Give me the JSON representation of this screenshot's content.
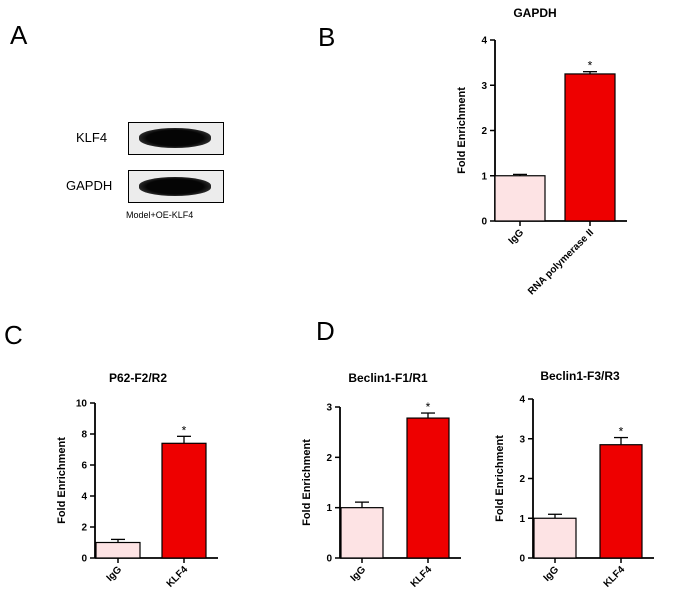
{
  "panels": {
    "a": "A",
    "b": "B",
    "c": "C",
    "d": "D"
  },
  "blot": {
    "rows": [
      "KLF4",
      "GAPDH"
    ],
    "caption": "Model+OE-KLF4"
  },
  "colors": {
    "igg_fill": "#fde3e4",
    "treatment_fill": "#ee0000",
    "axis": "#000000"
  },
  "chart_data": [
    {
      "id": "gapdh",
      "type": "bar",
      "title": "GAPDH",
      "ylabel": "Fold Enrichment",
      "xlabel": "",
      "ylim": [
        0,
        4
      ],
      "yticks": [
        "0",
        "1",
        "2",
        "3",
        "4"
      ],
      "categories": [
        "IgG",
        "RNA polymerase II"
      ],
      "values": [
        1.0,
        3.25
      ],
      "errors": [
        0.03,
        0.05
      ],
      "significance": [
        "",
        "*"
      ],
      "grid": false
    },
    {
      "id": "p62",
      "type": "bar",
      "title": "P62-F2/R2",
      "ylabel": "Fold Enrichment",
      "xlabel": "",
      "ylim": [
        0,
        10
      ],
      "yticks": [
        "0",
        "2",
        "4",
        "6",
        "8",
        "10"
      ],
      "categories": [
        "IgG",
        "KLF4"
      ],
      "values": [
        1.0,
        7.4
      ],
      "errors": [
        0.2,
        0.45
      ],
      "significance": [
        "",
        "*"
      ],
      "grid": false
    },
    {
      "id": "beclin1-f1",
      "type": "bar",
      "title": "Beclin1-F1/R1",
      "ylabel": "Fold Enrichment",
      "xlabel": "",
      "ylim": [
        0,
        3
      ],
      "yticks": [
        "0",
        "1",
        "2",
        "3"
      ],
      "categories": [
        "IgG",
        "KLF4"
      ],
      "values": [
        1.0,
        2.78
      ],
      "errors": [
        0.11,
        0.1
      ],
      "significance": [
        "",
        "*"
      ],
      "grid": false
    },
    {
      "id": "beclin1-f3",
      "type": "bar",
      "title": "Beclin1-F3/R3",
      "ylabel": "Fold Enrichment",
      "xlabel": "",
      "ylim": [
        0,
        4
      ],
      "yticks": [
        "0",
        "1",
        "2",
        "3",
        "4"
      ],
      "categories": [
        "IgG",
        "KLF4"
      ],
      "values": [
        1.0,
        2.85
      ],
      "errors": [
        0.1,
        0.18
      ],
      "significance": [
        "",
        "*"
      ],
      "grid": false
    }
  ]
}
